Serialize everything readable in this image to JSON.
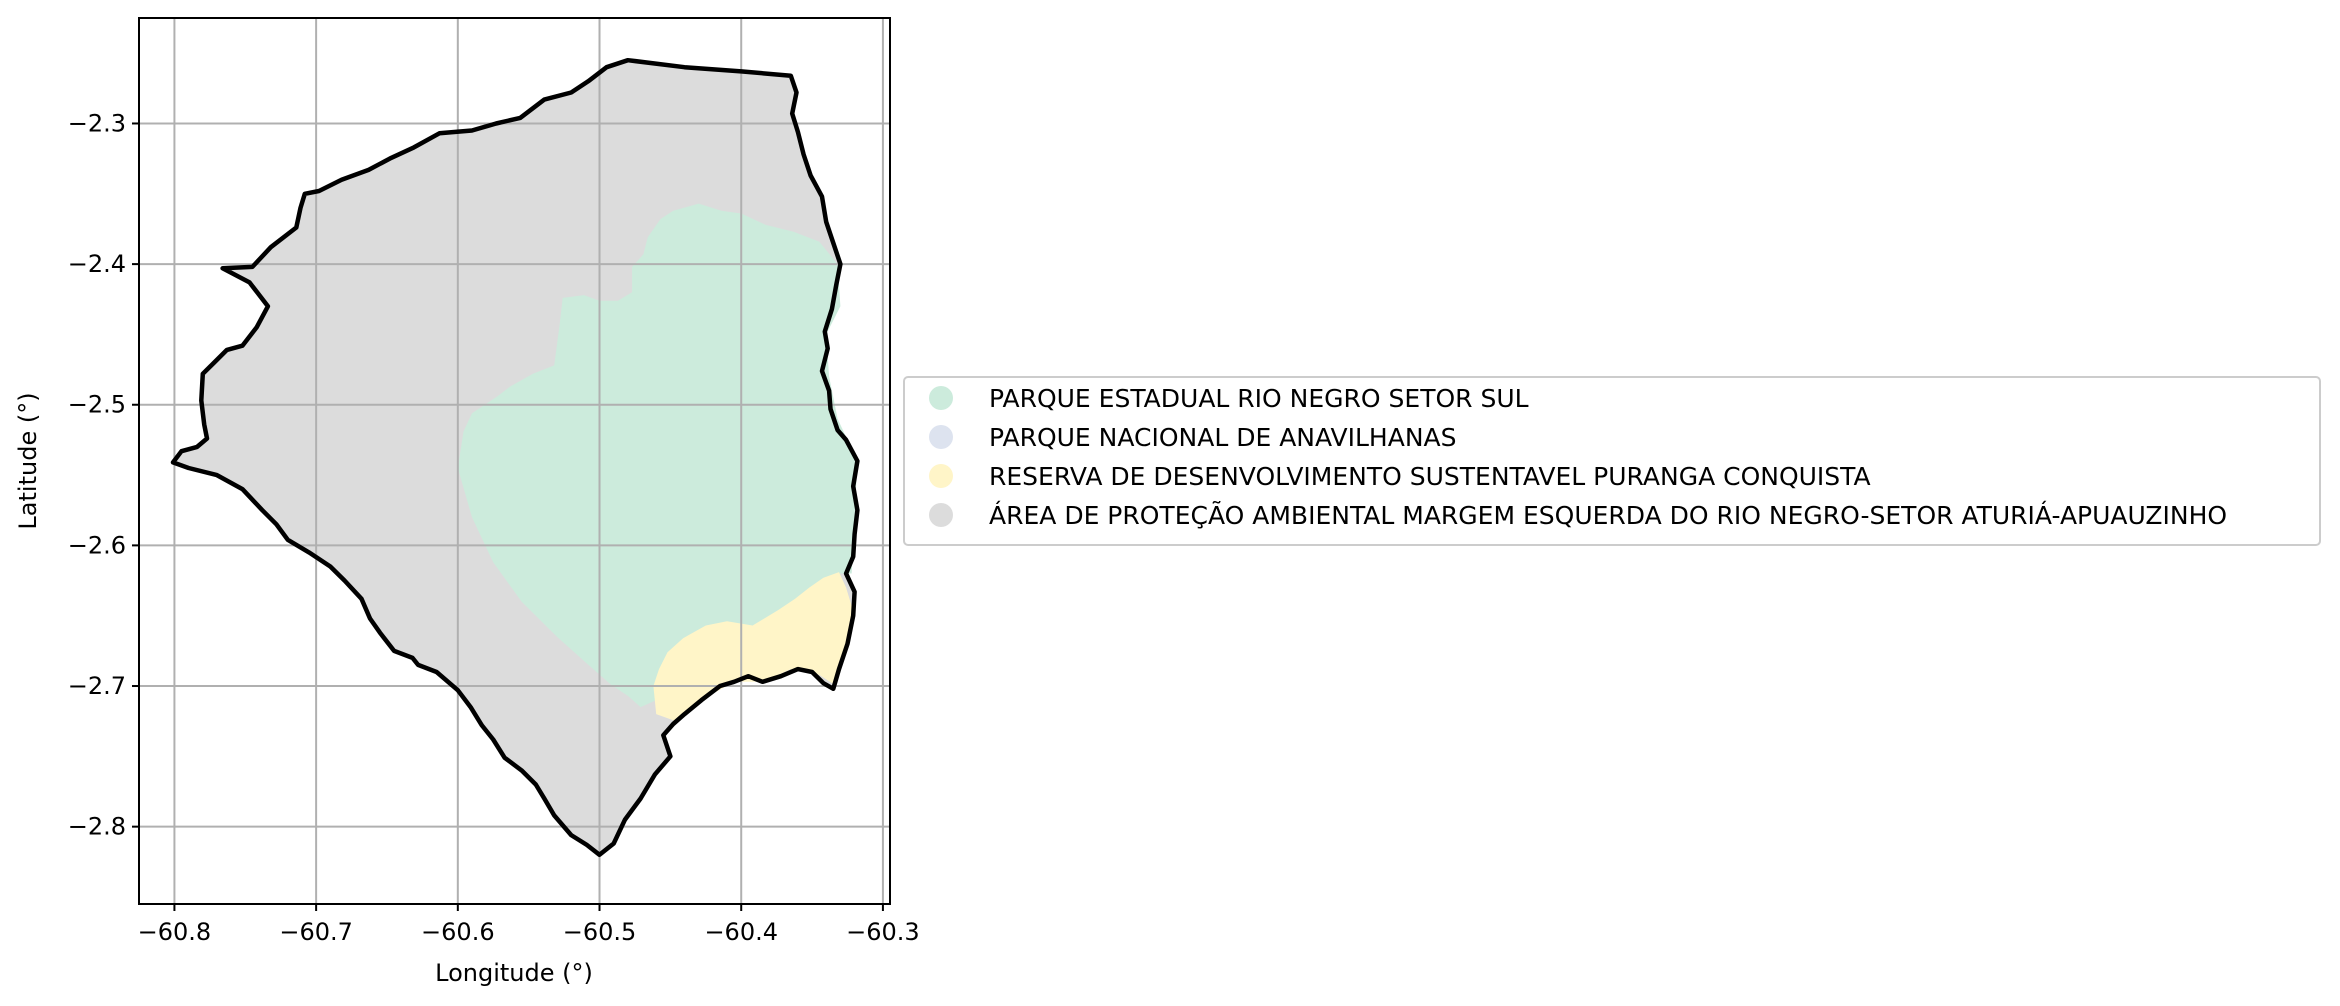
{
  "chart_data": {
    "type": "map",
    "xlabel": "Longitude (°)",
    "ylabel": "Latitude (°)",
    "xlim": [
      -60.825,
      -60.295
    ],
    "ylim": [
      -2.855,
      -2.225
    ],
    "xticks": [
      -60.8,
      -60.7,
      -60.6,
      -60.5,
      -60.4,
      -60.3
    ],
    "xtick_labels": [
      "−60.8",
      "−60.7",
      "−60.6",
      "−60.5",
      "−60.4",
      "−60.3"
    ],
    "yticks": [
      -2.3,
      -2.4,
      -2.5,
      -2.6,
      -2.7,
      -2.8
    ],
    "ytick_labels": [
      "−2.3",
      "−2.4",
      "−2.5",
      "−2.6",
      "−2.7",
      "−2.8"
    ],
    "grid": true,
    "legend_position": "right",
    "legend": [
      {
        "label": "PARQUE ESTADUAL RIO NEGRO SETOR SUL",
        "color": "#ccebdc"
      },
      {
        "label": "PARQUE NACIONAL DE ANAVILHANAS",
        "color": "#dde3ef"
      },
      {
        "label": "RESERVA DE DESENVOLVIMENTO SUSTENTAVEL PURANGA CONQUISTA",
        "color": "#fff5c8"
      },
      {
        "label": "ÁREA DE PROTEÇÃO AMBIENTAL MARGEM ESQUERDA DO RIO NEGRO-SETOR ATURIÁ-APUAUZINHO",
        "color": "#dcdcdc"
      }
    ],
    "regions": [
      {
        "name": "ÁREA DE PROTEÇÃO AMBIENTAL MARGEM ESQUERDA DO RIO NEGRO-SETOR ATURIÁ-APUAUZINHO",
        "color": "#dcdcdc",
        "coords": [
          [
            -60.801,
            -2.541
          ],
          [
            -60.795,
            -2.533
          ],
          [
            -60.784,
            -2.53
          ],
          [
            -60.777,
            -2.524
          ],
          [
            -60.779,
            -2.514
          ],
          [
            -60.781,
            -2.497
          ],
          [
            -60.78,
            -2.478
          ],
          [
            -60.772,
            -2.47
          ],
          [
            -60.763,
            -2.461
          ],
          [
            -60.752,
            -2.458
          ],
          [
            -60.742,
            -2.445
          ],
          [
            -60.734,
            -2.43
          ],
          [
            -60.747,
            -2.413
          ],
          [
            -60.766,
            -2.403
          ],
          [
            -60.745,
            -2.402
          ],
          [
            -60.732,
            -2.388
          ],
          [
            -60.714,
            -2.374
          ],
          [
            -60.711,
            -2.36
          ],
          [
            -60.708,
            -2.35
          ],
          [
            -60.698,
            -2.348
          ],
          [
            -60.682,
            -2.34
          ],
          [
            -60.663,
            -2.333
          ],
          [
            -60.648,
            -2.325
          ],
          [
            -60.631,
            -2.317
          ],
          [
            -60.613,
            -2.307
          ],
          [
            -60.59,
            -2.305
          ],
          [
            -60.573,
            -2.3
          ],
          [
            -60.556,
            -2.296
          ],
          [
            -60.539,
            -2.283
          ],
          [
            -60.52,
            -2.278
          ],
          [
            -60.508,
            -2.27
          ],
          [
            -60.495,
            -2.26
          ],
          [
            -60.48,
            -2.255
          ],
          [
            -60.44,
            -2.26
          ],
          [
            -60.4,
            -2.263
          ],
          [
            -60.365,
            -2.266
          ],
          [
            -60.361,
            -2.278
          ],
          [
            -60.364,
            -2.293
          ],
          [
            -60.36,
            -2.306
          ],
          [
            -60.356,
            -2.322
          ],
          [
            -60.351,
            -2.337
          ],
          [
            -60.343,
            -2.352
          ],
          [
            -60.34,
            -2.37
          ],
          [
            -60.335,
            -2.385
          ],
          [
            -60.33,
            -2.4
          ],
          [
            -60.333,
            -2.415
          ],
          [
            -60.336,
            -2.432
          ],
          [
            -60.341,
            -2.448
          ],
          [
            -60.339,
            -2.46
          ],
          [
            -60.343,
            -2.476
          ],
          [
            -60.338,
            -2.49
          ],
          [
            -60.337,
            -2.503
          ],
          [
            -60.332,
            -2.518
          ],
          [
            -60.326,
            -2.525
          ],
          [
            -60.318,
            -2.54
          ],
          [
            -60.321,
            -2.558
          ],
          [
            -60.318,
            -2.575
          ],
          [
            -60.32,
            -2.592
          ],
          [
            -60.321,
            -2.608
          ],
          [
            -60.326,
            -2.62
          ],
          [
            -60.32,
            -2.633
          ],
          [
            -60.321,
            -2.65
          ],
          [
            -60.325,
            -2.67
          ],
          [
            -60.331,
            -2.688
          ],
          [
            -60.335,
            -2.702
          ],
          [
            -60.342,
            -2.698
          ],
          [
            -60.35,
            -2.69
          ],
          [
            -60.36,
            -2.688
          ],
          [
            -60.372,
            -2.693
          ],
          [
            -60.385,
            -2.697
          ],
          [
            -60.395,
            -2.693
          ],
          [
            -60.405,
            -2.697
          ],
          [
            -60.415,
            -2.7
          ],
          [
            -60.428,
            -2.71
          ],
          [
            -60.44,
            -2.72
          ],
          [
            -60.448,
            -2.727
          ],
          [
            -60.455,
            -2.735
          ],
          [
            -60.45,
            -2.75
          ],
          [
            -60.461,
            -2.763
          ],
          [
            -60.471,
            -2.78
          ],
          [
            -60.482,
            -2.795
          ],
          [
            -60.49,
            -2.812
          ],
          [
            -60.5,
            -2.82
          ],
          [
            -60.509,
            -2.813
          ],
          [
            -60.52,
            -2.806
          ],
          [
            -60.532,
            -2.792
          ],
          [
            -60.539,
            -2.78
          ],
          [
            -60.545,
            -2.77
          ],
          [
            -60.555,
            -2.76
          ],
          [
            -60.567,
            -2.751
          ],
          [
            -60.575,
            -2.738
          ],
          [
            -60.583,
            -2.728
          ],
          [
            -60.591,
            -2.715
          ],
          [
            -60.6,
            -2.703
          ],
          [
            -60.615,
            -2.69
          ],
          [
            -60.628,
            -2.685
          ],
          [
            -60.632,
            -2.68
          ],
          [
            -60.645,
            -2.675
          ],
          [
            -60.655,
            -2.662
          ],
          [
            -60.662,
            -2.652
          ],
          [
            -60.668,
            -2.638
          ],
          [
            -60.68,
            -2.625
          ],
          [
            -60.69,
            -2.615
          ],
          [
            -60.705,
            -2.605
          ],
          [
            -60.72,
            -2.596
          ],
          [
            -60.728,
            -2.585
          ],
          [
            -60.738,
            -2.575
          ],
          [
            -60.752,
            -2.56
          ],
          [
            -60.77,
            -2.55
          ],
          [
            -60.79,
            -2.545
          ]
        ]
      },
      {
        "name": "PARQUE ESTADUAL RIO NEGRO SETOR SUL",
        "color": "#ccebdc",
        "coords": [
          [
            -60.6,
            -2.545
          ],
          [
            -60.596,
            -2.519
          ],
          [
            -60.59,
            -2.506
          ],
          [
            -60.572,
            -2.494
          ],
          [
            -60.563,
            -2.487
          ],
          [
            -60.547,
            -2.478
          ],
          [
            -60.532,
            -2.472
          ],
          [
            -60.528,
            -2.442
          ],
          [
            -60.526,
            -2.424
          ],
          [
            -60.511,
            -2.422
          ],
          [
            -60.5,
            -2.426
          ],
          [
            -60.487,
            -2.426
          ],
          [
            -60.477,
            -2.42
          ],
          [
            -60.477,
            -2.402
          ],
          [
            -60.469,
            -2.393
          ],
          [
            -60.466,
            -2.381
          ],
          [
            -60.457,
            -2.368
          ],
          [
            -60.448,
            -2.362
          ],
          [
            -60.43,
            -2.357
          ],
          [
            -60.414,
            -2.362
          ],
          [
            -60.4,
            -2.364
          ],
          [
            -60.383,
            -2.372
          ],
          [
            -60.363,
            -2.377
          ],
          [
            -60.345,
            -2.384
          ],
          [
            -60.332,
            -2.4
          ],
          [
            -60.33,
            -2.43
          ],
          [
            -60.34,
            -2.45
          ],
          [
            -60.338,
            -2.48
          ],
          [
            -60.332,
            -2.51
          ],
          [
            -60.318,
            -2.54
          ],
          [
            -60.32,
            -2.58
          ],
          [
            -60.322,
            -2.62
          ],
          [
            -60.334,
            -2.62
          ],
          [
            -60.345,
            -2.63
          ],
          [
            -60.357,
            -2.643
          ],
          [
            -60.37,
            -2.652
          ],
          [
            -60.39,
            -2.658
          ],
          [
            -60.408,
            -2.655
          ],
          [
            -60.423,
            -2.66
          ],
          [
            -60.434,
            -2.663
          ],
          [
            -60.442,
            -2.675
          ],
          [
            -60.445,
            -2.69
          ],
          [
            -60.453,
            -2.7
          ],
          [
            -60.46,
            -2.71
          ],
          [
            -60.471,
            -2.715
          ],
          [
            -60.48,
            -2.707
          ],
          [
            -60.492,
            -2.699
          ],
          [
            -60.51,
            -2.683
          ],
          [
            -60.53,
            -2.665
          ],
          [
            -60.555,
            -2.64
          ],
          [
            -60.575,
            -2.612
          ],
          [
            -60.59,
            -2.58
          ]
        ]
      },
      {
        "name": "RESERVA DE DESENVOLVIMENTO SUSTENTAVEL PURANGA CONQUISTA",
        "color": "#fff5c8",
        "coords": [
          [
            -60.46,
            -2.72
          ],
          [
            -60.462,
            -2.7
          ],
          [
            -60.458,
            -2.688
          ],
          [
            -60.452,
            -2.676
          ],
          [
            -60.441,
            -2.666
          ],
          [
            -60.425,
            -2.657
          ],
          [
            -60.41,
            -2.654
          ],
          [
            -60.392,
            -2.657
          ],
          [
            -60.374,
            -2.646
          ],
          [
            -60.362,
            -2.638
          ],
          [
            -60.352,
            -2.63
          ],
          [
            -60.342,
            -2.623
          ],
          [
            -60.331,
            -2.619
          ],
          [
            -60.326,
            -2.63
          ],
          [
            -60.32,
            -2.65
          ],
          [
            -60.325,
            -2.67
          ],
          [
            -60.333,
            -2.7
          ],
          [
            -60.345,
            -2.692
          ],
          [
            -60.365,
            -2.688
          ],
          [
            -60.385,
            -2.697
          ],
          [
            -60.405,
            -2.697
          ],
          [
            -60.428,
            -2.71
          ],
          [
            -60.446,
            -2.725
          ]
        ]
      }
    ]
  }
}
